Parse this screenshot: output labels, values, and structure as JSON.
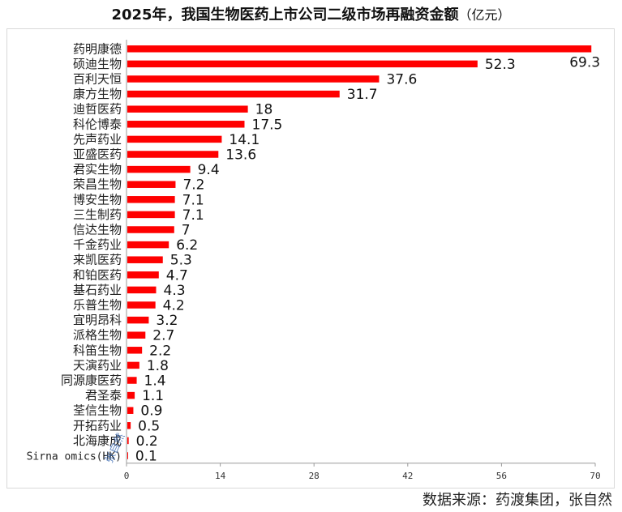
{
  "chart_data": {
    "type": "bar",
    "orientation": "horizontal",
    "title": "2025年，我国生物医药上市公司二级市场再融资金额",
    "title_unit": "（亿元）",
    "categories": [
      "药明康德",
      "硕迪生物",
      "百利天恒",
      "康方生物",
      "迪哲医药",
      "科伦博泰",
      "先声药业",
      "亚盛医药",
      "君实生物",
      "荣昌生物",
      "博安生物",
      "三生制药",
      "信达生物",
      "千金药业",
      "来凯医药",
      "和铂医药",
      "基石药业",
      "乐普生物",
      "宜明昂科",
      "派格生物",
      "科笛生物",
      "天演药业",
      "同源康医药",
      "君圣泰",
      "荃信生物",
      "开拓药业",
      "北海康成",
      "Sirna omics(HK)"
    ],
    "values": [
      69.3,
      52.3,
      37.6,
      31.7,
      18,
      17.5,
      14.1,
      13.6,
      9.4,
      7.2,
      7.1,
      7.1,
      7,
      6.2,
      5.3,
      4.7,
      4.3,
      4.2,
      3.2,
      2.7,
      2.2,
      1.8,
      1.4,
      1.1,
      0.9,
      0.5,
      0.2,
      0.1
    ],
    "value_labels": [
      "69.3",
      "52.3",
      "37.6",
      "31.7",
      "18",
      "17.5",
      "14.1",
      "13.6",
      "9.4",
      "7.2",
      "7.1",
      "7.1",
      "7",
      "6.2",
      "5.3",
      "4.7",
      "4.3",
      "4.2",
      "3.2",
      "2.7",
      "2.2",
      "1.8",
      "1.4",
      "1.1",
      "0.9",
      "0.5",
      "0.2",
      "0.1"
    ],
    "xlim": [
      0,
      70
    ],
    "xticks": [
      0,
      14,
      28,
      42,
      56,
      70
    ],
    "xlabel": "",
    "ylabel": "",
    "grid": false,
    "bar_color": "#ff0000"
  },
  "watermark": "张自然",
  "source": "数据来源：药渡集团，张自然"
}
